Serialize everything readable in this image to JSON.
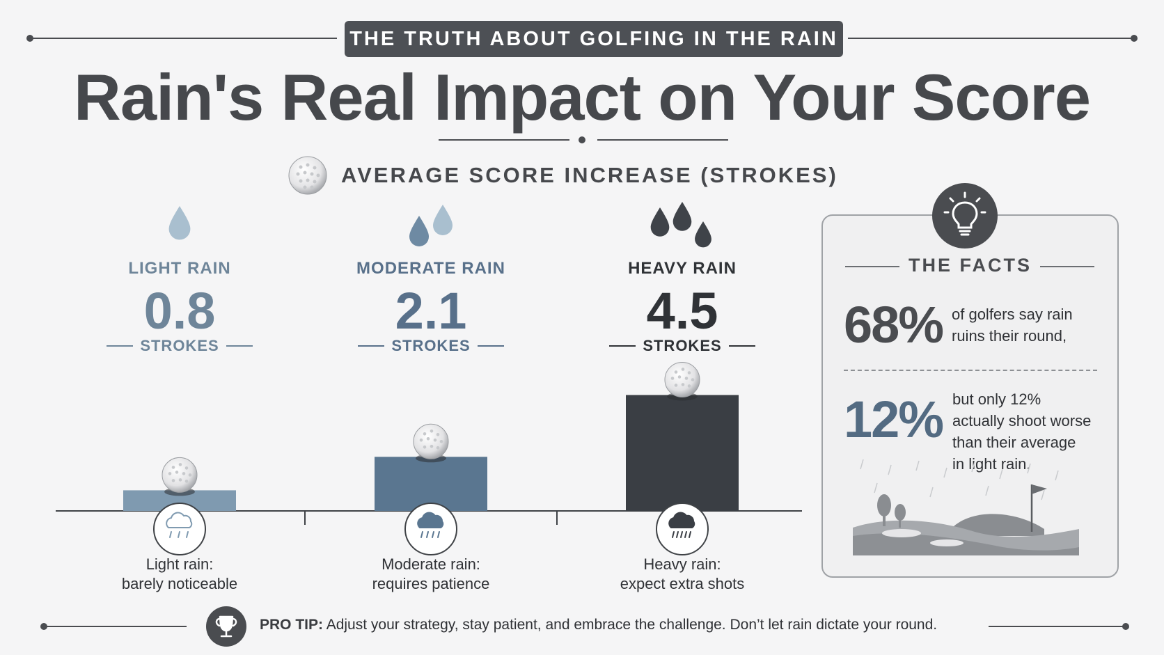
{
  "header": {
    "banner": "THE TRUTH ABOUT GOLFING IN THE RAIN",
    "title": "Rain's Real Impact on Your Score"
  },
  "chart_heading": "AVERAGE SCORE INCREASE (STROKES)",
  "chart_data": {
    "type": "bar",
    "title": "AVERAGE SCORE INCREASE (STROKES)",
    "categories": [
      "LIGHT RAIN",
      "MODERATE RAIN",
      "HEAVY RAIN"
    ],
    "values": [
      0.8,
      2.1,
      4.5
    ],
    "value_labels": [
      "0.8",
      "2.1",
      "4.5"
    ],
    "unit_label": "STROKES",
    "descriptions": [
      [
        "Light rain:",
        "barely noticeable"
      ],
      [
        "Moderate rain:",
        "requires patience"
      ],
      [
        "Heavy rain:",
        "expect extra shots"
      ]
    ],
    "colors": [
      "#7f9ab0",
      "#5a7690",
      "#3a3e44"
    ],
    "label_colors": [
      "#6e8599",
      "#58708a",
      "#2f3236"
    ],
    "xlabel": "",
    "ylabel": "",
    "grid": false,
    "legend": "none"
  },
  "facts": {
    "title": "THE FACTS",
    "stat1": {
      "value": "68%",
      "lines": [
        "of golfers say rain",
        "ruins their round,"
      ],
      "color": "#4a4c50"
    },
    "stat2": {
      "value": "12%",
      "lines": [
        "but only 12%",
        "actually shoot worse",
        "than their average",
        "in light rain."
      ],
      "color": "#536b82"
    }
  },
  "pro_tip": {
    "label": "PRO TIP:",
    "text": " Adjust your strategy, stay patient, and embrace the challenge. Don’t let rain dictate your round."
  },
  "icons": [
    "golf-ball-icon",
    "raindrop-icon",
    "light-rain-cloud-icon",
    "moderate-rain-cloud-icon",
    "heavy-rain-cloud-icon",
    "lightbulb-icon",
    "trophy-icon",
    "golf-course-illustration"
  ]
}
